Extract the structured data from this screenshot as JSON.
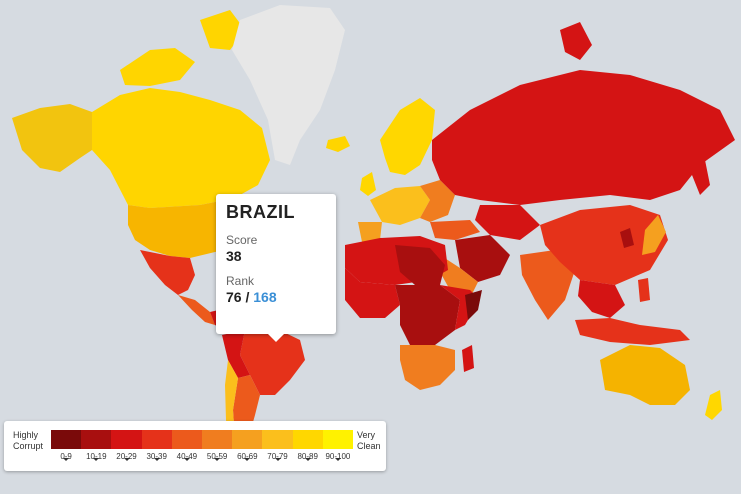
{
  "tooltip": {
    "country": "BRAZIL",
    "score_label": "Score",
    "score": "38",
    "rank_label": "Rank",
    "rank": "76",
    "rank_separator": " / ",
    "rank_total": "168"
  },
  "legend": {
    "left_label_line1": "Highly",
    "left_label_line2": "Corrupt",
    "right_label_line1": "Very",
    "right_label_line2": "Clean",
    "ranges": [
      "0-9",
      "10-19",
      "20-29",
      "30-39",
      "40-49",
      "50-59",
      "60-69",
      "70-79",
      "80-89",
      "90-100"
    ],
    "colors": [
      "#7a0a0a",
      "#a80f0f",
      "#d41414",
      "#e5321a",
      "#ec5a1c",
      "#f07d1f",
      "#f5a01f",
      "#fbbf1c",
      "#ffd700",
      "#fff200"
    ]
  },
  "map": {
    "ocean": "#d6dbe1",
    "no_data": "#e7e7e7"
  }
}
